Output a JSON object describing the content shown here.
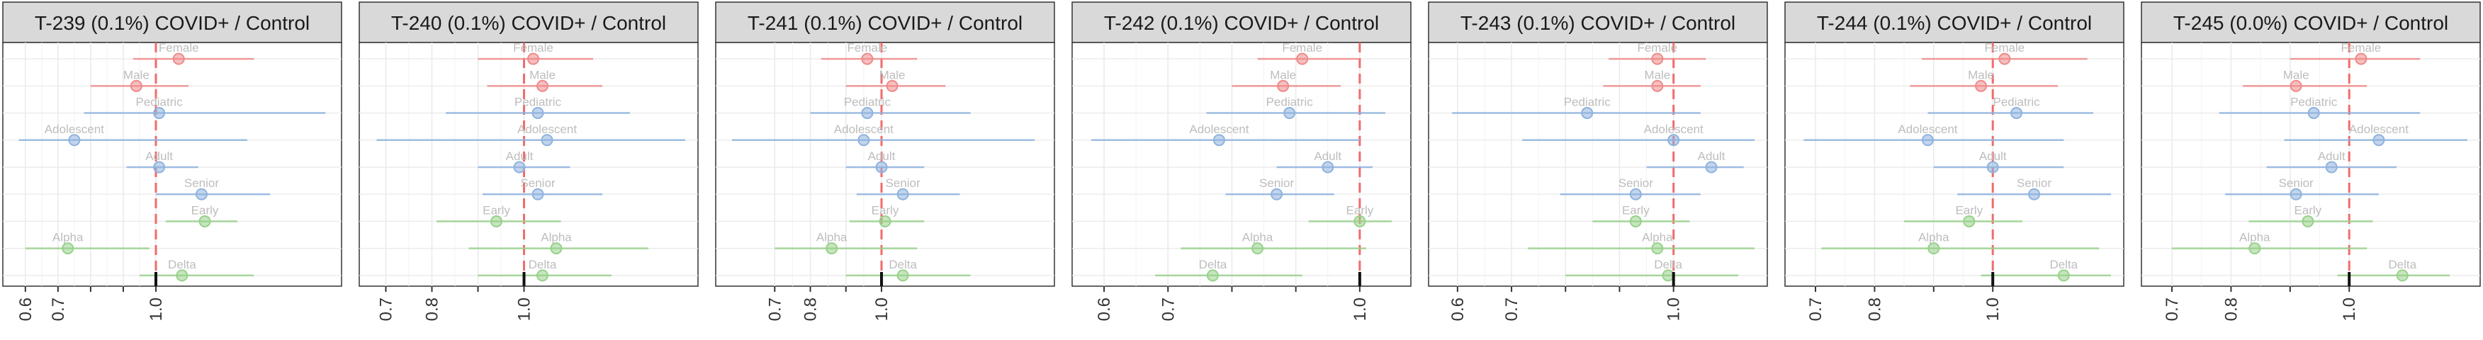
{
  "chart_data": [
    {
      "type": "forest",
      "title": "T-239 (0.1%) COVID+ / Control",
      "reference_line": 1.0,
      "xlim": [
        0.57,
        1.53
      ],
      "ticks": [
        0.6,
        0.7,
        0.8,
        0.9,
        1.0
      ],
      "tick_labels": [
        "0.6",
        "0.7",
        "",
        "",
        "1.0"
      ],
      "rows": [
        {
          "label": "Female",
          "group": "sex",
          "value": 1.07,
          "lo": 0.93,
          "hi": 1.3
        },
        {
          "label": "Male",
          "group": "sex",
          "value": 0.94,
          "lo": 0.8,
          "hi": 1.1
        },
        {
          "label": "Pediatric",
          "group": "age",
          "value": 1.01,
          "lo": 0.78,
          "hi": 1.52
        },
        {
          "label": "Adolescent",
          "group": "age",
          "value": 0.75,
          "lo": 0.58,
          "hi": 1.28
        },
        {
          "label": "Adult",
          "group": "age",
          "value": 1.01,
          "lo": 0.91,
          "hi": 1.13
        },
        {
          "label": "Senior",
          "group": "age",
          "value": 1.14,
          "lo": 1.0,
          "hi": 1.35
        },
        {
          "label": "Early",
          "group": "variant",
          "value": 1.15,
          "lo": 1.03,
          "hi": 1.25
        },
        {
          "label": "Alpha",
          "group": "variant",
          "value": 0.73,
          "lo": 0.6,
          "hi": 0.98
        },
        {
          "label": "Delta",
          "group": "variant",
          "value": 1.08,
          "lo": 0.95,
          "hi": 1.3
        }
      ]
    },
    {
      "type": "forest",
      "title": "T-240 (0.1%) COVID+ / Control",
      "reference_line": 1.0,
      "xlim": [
        0.67,
        1.35
      ],
      "ticks": [
        0.7,
        0.8,
        0.9,
        1.0
      ],
      "tick_labels": [
        "0.7",
        "0.8",
        "",
        "1.0"
      ],
      "rows": [
        {
          "label": "Female",
          "group": "sex",
          "value": 1.02,
          "lo": 0.9,
          "hi": 1.15
        },
        {
          "label": "Male",
          "group": "sex",
          "value": 1.04,
          "lo": 0.92,
          "hi": 1.17
        },
        {
          "label": "Pediatric",
          "group": "age",
          "value": 1.03,
          "lo": 0.83,
          "hi": 1.23
        },
        {
          "label": "Adolescent",
          "group": "age",
          "value": 1.05,
          "lo": 0.68,
          "hi": 1.35
        },
        {
          "label": "Adult",
          "group": "age",
          "value": 0.99,
          "lo": 0.9,
          "hi": 1.1
        },
        {
          "label": "Senior",
          "group": "age",
          "value": 1.03,
          "lo": 0.91,
          "hi": 1.17
        },
        {
          "label": "Early",
          "group": "variant",
          "value": 0.94,
          "lo": 0.81,
          "hi": 1.08
        },
        {
          "label": "Alpha",
          "group": "variant",
          "value": 1.07,
          "lo": 0.88,
          "hi": 1.27
        },
        {
          "label": "Delta",
          "group": "variant",
          "value": 1.04,
          "lo": 0.9,
          "hi": 1.19
        }
      ]
    },
    {
      "type": "forest",
      "title": "T-241 (0.1%) COVID+ / Control",
      "reference_line": 1.0,
      "xlim": [
        0.57,
        1.45
      ],
      "ticks": [
        0.7,
        0.8,
        0.9,
        1.0
      ],
      "tick_labels": [
        "0.7",
        "0.8",
        "",
        "1.0"
      ],
      "rows": [
        {
          "label": "Female",
          "group": "sex",
          "value": 0.96,
          "lo": 0.83,
          "hi": 1.1
        },
        {
          "label": "Male",
          "group": "sex",
          "value": 1.03,
          "lo": 0.9,
          "hi": 1.18
        },
        {
          "label": "Pediatric",
          "group": "age",
          "value": 0.96,
          "lo": 0.8,
          "hi": 1.25
        },
        {
          "label": "Adolescent",
          "group": "age",
          "value": 0.95,
          "lo": 0.58,
          "hi": 1.43
        },
        {
          "label": "Adult",
          "group": "age",
          "value": 1.0,
          "lo": 0.9,
          "hi": 1.12
        },
        {
          "label": "Senior",
          "group": "age",
          "value": 1.06,
          "lo": 0.93,
          "hi": 1.22
        },
        {
          "label": "Early",
          "group": "variant",
          "value": 1.01,
          "lo": 0.91,
          "hi": 1.12
        },
        {
          "label": "Alpha",
          "group": "variant",
          "value": 0.86,
          "lo": 0.7,
          "hi": 1.1
        },
        {
          "label": "Delta",
          "group": "variant",
          "value": 1.06,
          "lo": 0.9,
          "hi": 1.25
        }
      ]
    },
    {
      "type": "forest",
      "title": "T-242 (0.1%) COVID+ / Control",
      "reference_line": 1.0,
      "xlim": [
        0.57,
        1.06
      ],
      "ticks": [
        0.6,
        0.7,
        0.8,
        0.9,
        1.0
      ],
      "tick_labels": [
        "0.6",
        "0.7",
        "",
        "",
        "1.0"
      ],
      "rows": [
        {
          "label": "Female",
          "group": "sex",
          "value": 0.91,
          "lo": 0.84,
          "hi": 1.0
        },
        {
          "label": "Male",
          "group": "sex",
          "value": 0.88,
          "lo": 0.8,
          "hi": 0.97
        },
        {
          "label": "Pediatric",
          "group": "age",
          "value": 0.89,
          "lo": 0.76,
          "hi": 1.04
        },
        {
          "label": "Adolescent",
          "group": "age",
          "value": 0.78,
          "lo": 0.58,
          "hi": 1.0
        },
        {
          "label": "Adult",
          "group": "age",
          "value": 0.95,
          "lo": 0.87,
          "hi": 1.02
        },
        {
          "label": "Senior",
          "group": "age",
          "value": 0.87,
          "lo": 0.79,
          "hi": 0.96
        },
        {
          "label": "Early",
          "group": "variant",
          "value": 1.0,
          "lo": 0.92,
          "hi": 1.05
        },
        {
          "label": "Alpha",
          "group": "variant",
          "value": 0.84,
          "lo": 0.72,
          "hi": 1.01
        },
        {
          "label": "Delta",
          "group": "variant",
          "value": 0.77,
          "lo": 0.68,
          "hi": 0.91
        }
      ]
    },
    {
      "type": "forest",
      "title": "T-243 (0.1%) COVID+ / Control",
      "reference_line": 1.0,
      "xlim": [
        0.57,
        1.15
      ],
      "ticks": [
        0.6,
        0.7,
        0.8,
        0.9,
        1.0
      ],
      "tick_labels": [
        "0.6",
        "0.7",
        "",
        "",
        "1.0"
      ],
      "rows": [
        {
          "label": "Female",
          "group": "sex",
          "value": 0.97,
          "lo": 0.88,
          "hi": 1.06
        },
        {
          "label": "Male",
          "group": "sex",
          "value": 0.97,
          "lo": 0.87,
          "hi": 1.05
        },
        {
          "label": "Pediatric",
          "group": "age",
          "value": 0.84,
          "lo": 0.59,
          "hi": 1.05
        },
        {
          "label": "Adolescent",
          "group": "age",
          "value": 1.0,
          "lo": 0.72,
          "hi": 1.15
        },
        {
          "label": "Adult",
          "group": "age",
          "value": 1.07,
          "lo": 0.95,
          "hi": 1.13
        },
        {
          "label": "Senior",
          "group": "age",
          "value": 0.93,
          "lo": 0.79,
          "hi": 1.05
        },
        {
          "label": "Early",
          "group": "variant",
          "value": 0.93,
          "lo": 0.85,
          "hi": 1.03
        },
        {
          "label": "Alpha",
          "group": "variant",
          "value": 0.97,
          "lo": 0.73,
          "hi": 1.2
        },
        {
          "label": "Delta",
          "group": "variant",
          "value": 0.99,
          "lo": 0.8,
          "hi": 1.12
        }
      ]
    },
    {
      "type": "forest",
      "title": "T-244 (0.1%) COVID+ / Control",
      "reference_line": 1.0,
      "xlim": [
        0.67,
        1.2
      ],
      "ticks": [
        0.7,
        0.8,
        0.9,
        1.0
      ],
      "tick_labels": [
        "0.7",
        "0.8",
        "",
        "1.0"
      ],
      "rows": [
        {
          "label": "Female",
          "group": "sex",
          "value": 1.02,
          "lo": 0.88,
          "hi": 1.16
        },
        {
          "label": "Male",
          "group": "sex",
          "value": 0.98,
          "lo": 0.86,
          "hi": 1.11
        },
        {
          "label": "Pediatric",
          "group": "age",
          "value": 1.04,
          "lo": 0.89,
          "hi": 1.17
        },
        {
          "label": "Adolescent",
          "group": "age",
          "value": 0.89,
          "lo": 0.68,
          "hi": 1.12
        },
        {
          "label": "Adult",
          "group": "age",
          "value": 1.0,
          "lo": 0.9,
          "hi": 1.12
        },
        {
          "label": "Senior",
          "group": "age",
          "value": 1.07,
          "lo": 0.94,
          "hi": 1.2
        },
        {
          "label": "Early",
          "group": "variant",
          "value": 0.96,
          "lo": 0.85,
          "hi": 1.05
        },
        {
          "label": "Alpha",
          "group": "variant",
          "value": 0.9,
          "lo": 0.71,
          "hi": 1.18
        },
        {
          "label": "Delta",
          "group": "variant",
          "value": 1.12,
          "lo": 0.98,
          "hi": 1.2
        }
      ]
    },
    {
      "type": "forest",
      "title": "T-245 (0.0%) COVID+ / Control",
      "reference_line": 1.0,
      "xlim": [
        0.67,
        1.2
      ],
      "ticks": [
        0.7,
        0.8,
        0.9,
        1.0
      ],
      "tick_labels": [
        "0.7",
        "0.8",
        "",
        "1.0"
      ],
      "rows": [
        {
          "label": "Female",
          "group": "sex",
          "value": 1.02,
          "lo": 0.9,
          "hi": 1.12
        },
        {
          "label": "Male",
          "group": "sex",
          "value": 0.91,
          "lo": 0.82,
          "hi": 1.03
        },
        {
          "label": "Pediatric",
          "group": "age",
          "value": 0.94,
          "lo": 0.78,
          "hi": 1.12
        },
        {
          "label": "Adolescent",
          "group": "age",
          "value": 1.05,
          "lo": 0.89,
          "hi": 1.2
        },
        {
          "label": "Adult",
          "group": "age",
          "value": 0.97,
          "lo": 0.86,
          "hi": 1.08
        },
        {
          "label": "Senior",
          "group": "age",
          "value": 0.91,
          "lo": 0.79,
          "hi": 1.05
        },
        {
          "label": "Early",
          "group": "variant",
          "value": 0.93,
          "lo": 0.83,
          "hi": 1.04
        },
        {
          "label": "Alpha",
          "group": "variant",
          "value": 0.84,
          "lo": 0.7,
          "hi": 1.03
        },
        {
          "label": "Delta",
          "group": "variant",
          "value": 1.09,
          "lo": 0.98,
          "hi": 1.17
        }
      ]
    }
  ],
  "colors": {
    "sex": "#ef8a8a",
    "age": "#8fb3de",
    "variant": "#98d18b",
    "reference_line": "#f26b6b",
    "strip_fill": "#d9d9d9",
    "grid": "#ebebeb"
  }
}
